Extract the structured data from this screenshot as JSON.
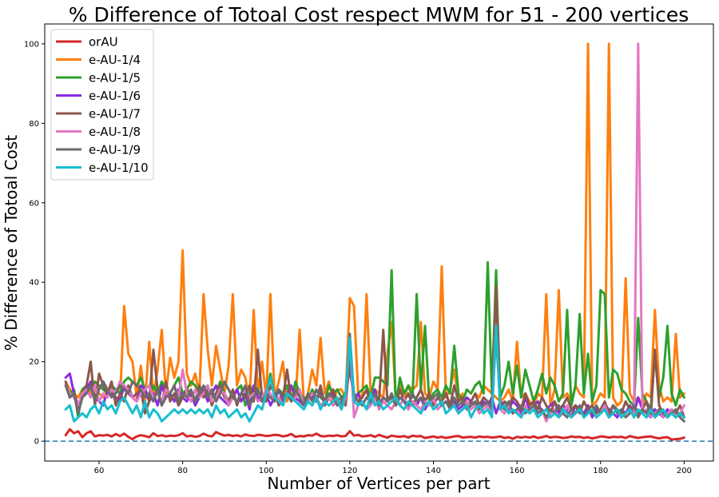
{
  "chart_data": {
    "type": "line",
    "title": "% Difference of Totoal Cost respect MWM for 51 - 200 vertices",
    "xlabel": "Number of Vertices per part",
    "ylabel": "% Difference of Totoal Cost",
    "xlim": [
      47,
      207
    ],
    "ylim": [
      -5,
      105
    ],
    "xticks": [
      60,
      80,
      100,
      120,
      140,
      160,
      180,
      200
    ],
    "yticks": [
      0,
      20,
      40,
      60,
      80,
      100
    ],
    "grid": false,
    "legend_position": "upper-left",
    "reference_line": {
      "y": 0,
      "style": "dashed",
      "color": "#1f77b4"
    },
    "x": [
      52,
      53,
      54,
      55,
      56,
      57,
      58,
      59,
      60,
      61,
      62,
      63,
      64,
      65,
      66,
      67,
      68,
      69,
      70,
      71,
      72,
      73,
      74,
      75,
      76,
      77,
      78,
      79,
      80,
      81,
      82,
      83,
      84,
      85,
      86,
      87,
      88,
      89,
      90,
      91,
      92,
      93,
      94,
      95,
      96,
      97,
      98,
      99,
      100,
      101,
      102,
      103,
      104,
      105,
      106,
      107,
      108,
      109,
      110,
      111,
      112,
      113,
      114,
      115,
      116,
      117,
      118,
      119,
      120,
      121,
      122,
      123,
      124,
      125,
      126,
      127,
      128,
      129,
      130,
      131,
      132,
      133,
      134,
      135,
      136,
      137,
      138,
      139,
      140,
      141,
      142,
      143,
      144,
      145,
      146,
      147,
      148,
      149,
      150,
      151,
      152,
      153,
      154,
      155,
      156,
      157,
      158,
      159,
      160,
      161,
      162,
      163,
      164,
      165,
      166,
      167,
      168,
      169,
      170,
      171,
      172,
      173,
      174,
      175,
      176,
      177,
      178,
      179,
      180,
      181,
      182,
      183,
      184,
      185,
      186,
      187,
      188,
      189,
      190,
      191,
      192,
      193,
      194,
      195,
      196,
      197,
      198,
      199,
      200
    ],
    "series": [
      {
        "name": "orAU",
        "color": "#d62728",
        "values": [
          1.5,
          3,
          2,
          2.5,
          1,
          2,
          2.5,
          1.2,
          1.5,
          1.4,
          1.6,
          1.2,
          1.8,
          1.3,
          1.9,
          1.1,
          0.5,
          1.2,
          1.5,
          1.3,
          1,
          2,
          1.3,
          1.5,
          1.2,
          1.4,
          1.3,
          1.5,
          2,
          1.2,
          1.4,
          1.1,
          1.3,
          1.9,
          1.4,
          1.2,
          2.3,
          1.8,
          1.4,
          1.6,
          1.3,
          1.5,
          1.2,
          1.7,
          1.4,
          1.3,
          1.6,
          1.5,
          1.3,
          1.4,
          1.6,
          1.5,
          1.2,
          1.4,
          1.8,
          1.1,
          1.3,
          1.2,
          1.5,
          1.4,
          1.9,
          1.3,
          1.2,
          1.4,
          1.3,
          1.5,
          1.2,
          1.3,
          2.5,
          1.4,
          1.6,
          1.2,
          1.3,
          1.5,
          1.1,
          1.6,
          1.2,
          0.9,
          1.4,
          1.2,
          1.1,
          1.3,
          0.9,
          1.4,
          1.2,
          1.3,
          0.8,
          1,
          1.2,
          0.9,
          1.1,
          0.8,
          1,
          1.2,
          1.3,
          0.9,
          1,
          1.1,
          0.9,
          1.2,
          1,
          1.1,
          0.9,
          1,
          1.2,
          0.8,
          1,
          0.6,
          1.1,
          0.9,
          1.1,
          0.9,
          1.2,
          0.8,
          1,
          1.3,
          0.9,
          1.1,
          1,
          0.8,
          0.9,
          1.2,
          1,
          1.1,
          0.8,
          1,
          0.7,
          0.9,
          1.2,
          1.1,
          0.9,
          1.1,
          1,
          1.1,
          0.8,
          1.3,
          1,
          0.8,
          1,
          1.1,
          1.2,
          0.9,
          0.7,
          0.9,
          1,
          0.4,
          0.5,
          0.6,
          0.9
        ]
      },
      {
        "name": "e-AU-1/4",
        "color": "#ff7f0e",
        "values": [
          15,
          13,
          12,
          11,
          13,
          14,
          12,
          13,
          12,
          11,
          12,
          13,
          11,
          10,
          34,
          22,
          20,
          11,
          19,
          10,
          25,
          11,
          18,
          28,
          12,
          21,
          16,
          20,
          48,
          17,
          14,
          17,
          12,
          37,
          23,
          14,
          24,
          18,
          12,
          19,
          37,
          14,
          18,
          16,
          10,
          33,
          12,
          20,
          11,
          37,
          11,
          15,
          20,
          10,
          14,
          10,
          28,
          10,
          12,
          18,
          14,
          26,
          12,
          15,
          10,
          13,
          13,
          11,
          36,
          34,
          12,
          11,
          37,
          12,
          13,
          12,
          11,
          22,
          30,
          10,
          14,
          11,
          14,
          13,
          14,
          30,
          12,
          11,
          15,
          13,
          44,
          11,
          13,
          18,
          10,
          12,
          8,
          10,
          12,
          11,
          14,
          13,
          12,
          11,
          10,
          11,
          13,
          10,
          25,
          11,
          12,
          10,
          9,
          12,
          11,
          37,
          9,
          13,
          38,
          11,
          12,
          10,
          14,
          12,
          11,
          100,
          9,
          10,
          12,
          11,
          100,
          11,
          9,
          10,
          41,
          12,
          10,
          11,
          9,
          12,
          11,
          33,
          14,
          10,
          11,
          10,
          27,
          11,
          12
        ]
      },
      {
        "name": "e-AU-1/5",
        "color": "#2ca02c",
        "values": [
          14,
          12,
          13,
          6,
          13,
          14,
          13,
          15,
          14,
          13,
          12,
          14,
          13,
          12,
          15,
          16,
          15,
          14,
          16,
          13,
          11,
          14,
          12,
          15,
          13,
          12,
          14,
          16,
          12,
          13,
          15,
          14,
          12,
          13,
          14,
          11,
          12,
          15,
          12,
          10,
          11,
          13,
          14,
          9,
          12,
          14,
          13,
          10,
          12,
          17,
          11,
          13,
          12,
          14,
          10,
          15,
          12,
          11,
          10,
          13,
          11,
          12,
          10,
          14,
          12,
          13,
          11,
          12,
          18,
          11,
          12,
          13,
          14,
          11,
          16,
          16,
          15,
          14,
          43,
          9,
          16,
          12,
          14,
          11,
          37,
          13,
          29,
          10,
          12,
          13,
          11,
          14,
          12,
          24,
          12,
          10,
          13,
          12,
          14,
          15,
          12,
          45,
          12,
          43,
          11,
          14,
          20,
          12,
          19,
          11,
          18,
          14,
          10,
          13,
          17,
          12,
          16,
          14,
          10,
          12,
          33,
          9,
          14,
          32,
          12,
          22,
          10,
          14,
          38,
          37,
          11,
          18,
          17,
          13,
          12,
          10,
          9,
          31,
          12,
          10,
          8,
          22,
          11,
          16,
          29,
          12,
          9,
          13,
          11
        ]
      },
      {
        "name": "e-AU-1/6",
        "color": "#8a2be2",
        "values": [
          16,
          17,
          12,
          9,
          11,
          13,
          15,
          11,
          10,
          9,
          13,
          12,
          11,
          10,
          14,
          12,
          11,
          10,
          14,
          13,
          10,
          12,
          9,
          14,
          11,
          12,
          10,
          13,
          11,
          10,
          12,
          9,
          11,
          13,
          10,
          12,
          14,
          11,
          10,
          9,
          11,
          13,
          10,
          12,
          8,
          14,
          11,
          10,
          12,
          9,
          11,
          13,
          10,
          12,
          14,
          11,
          10,
          9,
          12,
          11,
          10,
          13,
          9,
          11,
          12,
          10,
          9,
          11,
          20,
          10,
          12,
          9,
          11,
          10,
          13,
          9,
          11,
          10,
          12,
          9,
          11,
          10,
          8,
          10,
          9,
          11,
          8,
          10,
          9,
          11,
          10,
          12,
          9,
          10,
          8,
          9,
          11,
          10,
          9,
          8,
          10,
          9,
          11,
          7,
          10,
          9,
          8,
          10,
          9,
          7,
          11,
          8,
          9,
          10,
          7,
          8,
          9,
          10,
          7,
          9,
          8,
          6,
          9,
          8,
          7,
          9,
          6,
          8,
          7,
          9,
          8,
          7,
          6,
          8,
          7,
          9,
          7,
          11,
          8,
          7,
          6,
          8,
          7,
          6,
          8,
          7,
          6,
          7,
          6
        ]
      },
      {
        "name": "e-AU-1/7",
        "color": "#8c564b",
        "values": [
          15,
          11,
          12,
          8,
          12,
          14,
          20,
          9,
          17,
          14,
          12,
          15,
          9,
          12,
          10,
          14,
          11,
          12,
          13,
          7,
          10,
          23,
          13,
          9,
          15,
          10,
          12,
          9,
          11,
          13,
          12,
          10,
          14,
          11,
          13,
          9,
          12,
          14,
          11,
          10,
          13,
          9,
          12,
          11,
          14,
          10,
          23,
          11,
          10,
          14,
          12,
          9,
          11,
          18,
          10,
          13,
          12,
          10,
          11,
          12,
          10,
          14,
          9,
          11,
          13,
          10,
          11,
          9,
          21,
          12,
          10,
          11,
          13,
          9,
          12,
          10,
          28,
          10,
          11,
          9,
          13,
          10,
          12,
          9,
          11,
          13,
          10,
          12,
          9,
          11,
          10,
          12,
          9,
          14,
          10,
          11,
          9,
          10,
          12,
          9,
          11,
          10,
          9,
          39,
          8,
          10,
          9,
          11,
          10,
          8,
          12,
          9,
          10,
          8,
          11,
          9,
          7,
          10,
          8,
          9,
          11,
          8,
          9,
          7,
          10,
          8,
          9,
          7,
          8,
          10,
          7,
          9,
          8,
          7,
          10,
          8,
          9,
          7,
          8,
          10,
          6,
          23,
          9,
          7,
          6,
          8,
          7,
          9,
          6
        ]
      },
      {
        "name": "e-AU-1/8",
        "color": "#e377c2",
        "values": [
          14,
          12,
          11,
          9,
          12,
          13,
          11,
          14,
          10,
          12,
          11,
          13,
          12,
          15,
          14,
          13,
          11,
          10,
          12,
          13,
          14,
          11,
          12,
          10,
          13,
          12,
          14,
          11,
          18,
          12,
          10,
          13,
          11,
          12,
          14,
          10,
          11,
          13,
          12,
          9,
          11,
          10,
          12,
          13,
          11,
          12,
          10,
          11,
          13,
          12,
          10,
          11,
          9,
          12,
          10,
          11,
          13,
          9,
          10,
          12,
          11,
          9,
          10,
          11,
          9,
          10,
          8,
          11,
          26,
          6,
          9,
          10,
          8,
          9,
          11,
          8,
          10,
          9,
          8,
          10,
          9,
          11,
          8,
          10,
          9,
          8,
          10,
          9,
          11,
          8,
          9,
          10,
          8,
          9,
          7,
          8,
          10,
          8,
          9,
          7,
          8,
          9,
          7,
          29,
          8,
          7,
          9,
          7,
          8,
          6,
          9,
          7,
          8,
          7,
          8,
          5,
          7,
          8,
          6,
          7,
          9,
          6,
          7,
          8,
          6,
          7,
          8,
          6,
          7,
          9,
          6,
          7,
          8,
          6,
          7,
          8,
          6,
          100,
          7,
          8,
          6,
          7,
          8,
          6,
          7,
          8,
          6,
          7,
          9
        ]
      },
      {
        "name": "e-AU-1/9",
        "color": "#6b6b6b",
        "values": [
          14,
          11,
          12,
          7,
          11,
          12,
          14,
          10,
          13,
          15,
          13,
          11,
          12,
          14,
          13,
          12,
          15,
          14,
          13,
          11,
          12,
          10,
          13,
          9,
          11,
          12,
          14,
          10,
          12,
          11,
          13,
          10,
          12,
          14,
          11,
          13,
          10,
          12,
          15,
          13,
          11,
          10,
          12,
          14,
          9,
          11,
          13,
          10,
          12,
          11,
          10,
          13,
          11,
          12,
          10,
          13,
          11,
          9,
          12,
          10,
          13,
          11,
          10,
          12,
          11,
          9,
          10,
          12,
          27,
          11,
          10,
          9,
          11,
          10,
          12,
          9,
          11,
          10,
          12,
          9,
          11,
          10,
          9,
          12,
          10,
          11,
          9,
          10,
          11,
          12,
          9,
          10,
          8,
          11,
          9,
          10,
          8,
          9,
          10,
          8,
          9,
          10,
          8,
          27,
          9,
          8,
          10,
          7,
          8,
          9,
          7,
          8,
          9,
          7,
          8,
          6,
          8,
          7,
          9,
          7,
          6,
          8,
          7,
          9,
          6,
          8,
          7,
          9,
          7,
          8,
          6,
          9,
          7,
          8,
          6,
          7,
          9,
          6,
          8,
          7,
          9,
          6,
          8,
          7,
          6,
          7,
          8,
          6,
          5
        ]
      },
      {
        "name": "e-AU-1/10",
        "color": "#17becf",
        "values": [
          8,
          9,
          5,
          6,
          7,
          6,
          8,
          9,
          7,
          10,
          8,
          9,
          7,
          10,
          11,
          9,
          7,
          9,
          6,
          10,
          6,
          8,
          7,
          5,
          6,
          7,
          8,
          7,
          8,
          7,
          8,
          7,
          8,
          7,
          8,
          6,
          9,
          7,
          8,
          6,
          7,
          8,
          6,
          7,
          5,
          7,
          9,
          8,
          12,
          16,
          11,
          10,
          9,
          12,
          11,
          10,
          9,
          8,
          10,
          9,
          11,
          8,
          10,
          9,
          10,
          11,
          8,
          12,
          26,
          10,
          9,
          10,
          8,
          12,
          9,
          10,
          8,
          9,
          10,
          11,
          9,
          8,
          10,
          9,
          8,
          7,
          9,
          10,
          8,
          9,
          10,
          7,
          8,
          9,
          7,
          8,
          9,
          6,
          8,
          9,
          7,
          8,
          6,
          29,
          8,
          9,
          7,
          8,
          7,
          6,
          8,
          7,
          8,
          6,
          7,
          8,
          6,
          7,
          6,
          8,
          7,
          6,
          7,
          8,
          6,
          7,
          8,
          6,
          7,
          8,
          6,
          7,
          8,
          6,
          7,
          8,
          6,
          8,
          7,
          6,
          8,
          6,
          7,
          8,
          6,
          7,
          6,
          7,
          6
        ]
      }
    ]
  }
}
